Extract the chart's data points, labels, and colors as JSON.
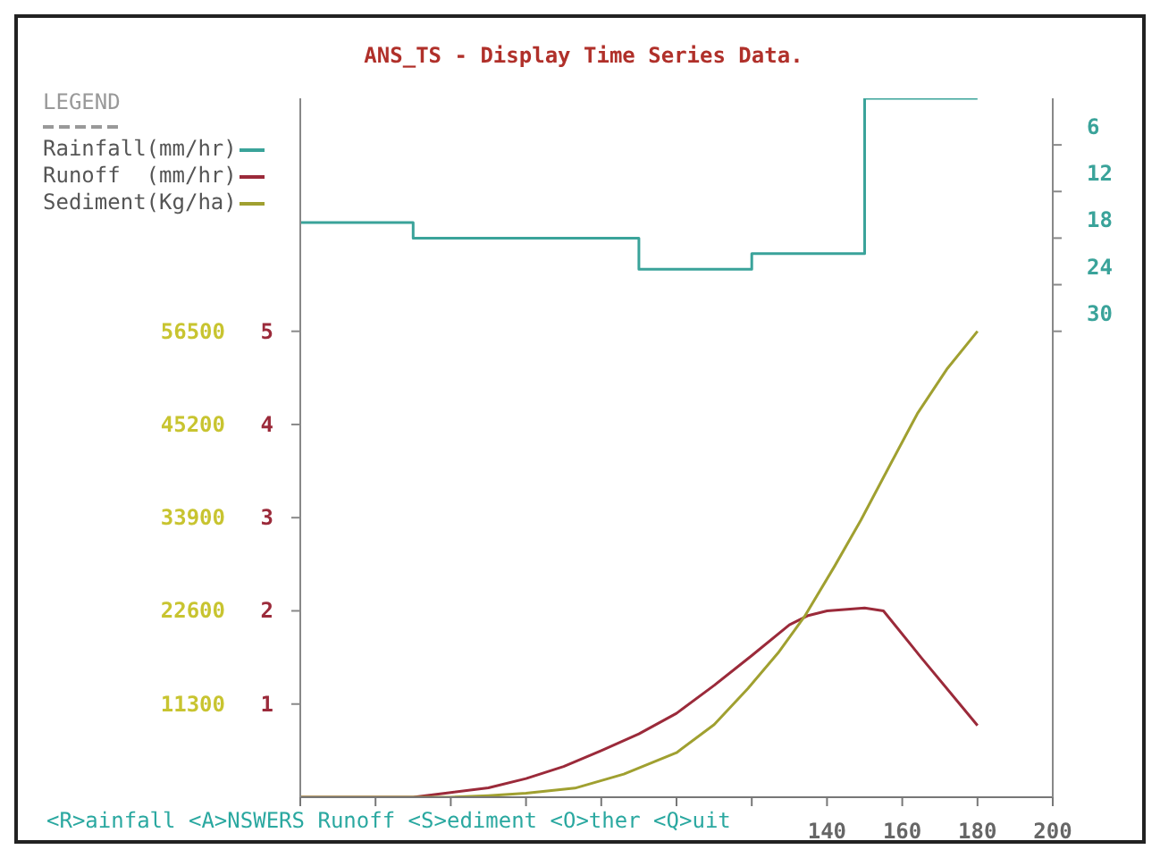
{
  "chart_data": {
    "type": "line",
    "title": "ANS_TS - Display Time Series Data.",
    "legend_title": "LEGEND",
    "legend": "top left",
    "annotations": [
      "<R>ainfall <A>NSWERS Runoff <S>ediment <O>ther <Q>uit"
    ],
    "xlim": [
      0,
      200
    ],
    "xticks": [
      {
        "value": 0,
        "label": null
      },
      {
        "value": 20,
        "label": null
      },
      {
        "value": 40,
        "label": null
      },
      {
        "value": 60,
        "label": null
      },
      {
        "value": 80,
        "label": null
      },
      {
        "value": 100,
        "label": null
      },
      {
        "value": 120,
        "label": null
      },
      140,
      160,
      180,
      200
    ],
    "ylim": [
      0,
      7.5
    ],
    "yticks": [
      1,
      2,
      3,
      4,
      5
    ],
    "y2lim": [
      90,
      0
    ],
    "y2ticks": [
      6,
      12,
      18,
      24,
      30
    ],
    "y3lim": [
      0,
      84750
    ],
    "y3ticks": [
      11300,
      22600,
      33900,
      45200,
      56500
    ],
    "series": [
      {
        "name": "Rainfall(mm/hr)",
        "type": "step",
        "axis": "y2",
        "color": "#3aa39a",
        "x": [
          0,
          30,
          60,
          90,
          120,
          150,
          180
        ],
        "values": [
          16,
          18,
          18,
          22,
          20,
          0,
          0
        ]
      },
      {
        "name": "Runoff  (mm/hr)",
        "axis": "y",
        "color": "#9b2a3a",
        "x": [
          0,
          30,
          40,
          50,
          60,
          70,
          80,
          90,
          100,
          110,
          120,
          130,
          135,
          140,
          150,
          155,
          165,
          180
        ],
        "values": [
          0,
          0,
          0.05,
          0.1,
          0.2,
          0.33,
          0.5,
          0.68,
          0.9,
          1.2,
          1.52,
          1.85,
          1.95,
          2.0,
          2.03,
          2.0,
          1.5,
          0.77
        ]
      },
      {
        "name": "Sediment(Kg/ha)",
        "axis": "y3",
        "color": "#a0a030",
        "x": [
          0,
          40,
          50,
          60,
          73,
          86,
          100,
          110,
          119,
          127,
          134,
          142,
          149,
          157,
          164,
          172,
          180
        ],
        "values": [
          0,
          0,
          200,
          500,
          1100,
          2800,
          5400,
          8800,
          13200,
          17500,
          21900,
          28000,
          33600,
          40500,
          46500,
          52000,
          56500
        ]
      }
    ]
  }
}
